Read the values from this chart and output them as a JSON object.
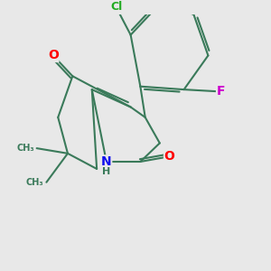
{
  "bg_color": "#e8e8e8",
  "bond_color": "#3a7a5a",
  "bond_width": 1.5,
  "atom_colors": {
    "O": "#ff0000",
    "N": "#1010ee",
    "Cl": "#22aa22",
    "F": "#cc00cc",
    "C": "#3a7a5a",
    "H": "#3a7a5a"
  },
  "font_size": 9,
  "xlim": [
    0,
    10
  ],
  "ylim": [
    0,
    10
  ]
}
